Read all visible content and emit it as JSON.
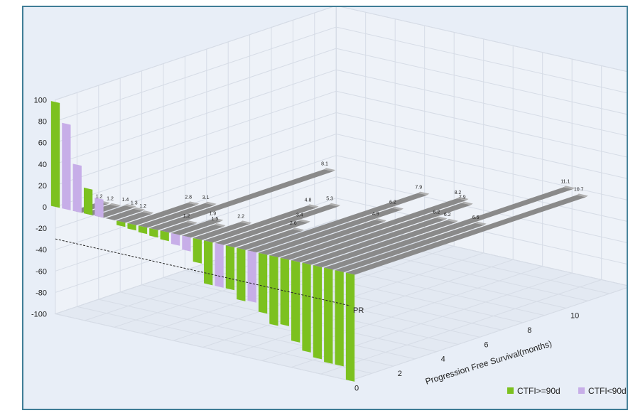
{
  "chart_data": {
    "type": "bar",
    "view": "3d",
    "colors": {
      "ctfi_ge_90d": "#7cc11f",
      "ctfi_lt_90d": "#c7aee8",
      "pfs": "#8a8a8a",
      "frame": "#3f7d96",
      "background": "#e8eef7"
    },
    "zlim": [
      -100,
      100
    ],
    "z_ticks": [
      "100",
      "80",
      "60",
      "40",
      "20",
      "0",
      "-20",
      "-40",
      "-60",
      "-80",
      "-100"
    ],
    "pfs_ticks": [
      "0",
      "2",
      "4",
      "6",
      "8",
      "10"
    ],
    "pfs_axis_label": "Progression Free Survival(months)",
    "threshold": {
      "value": -30,
      "label": "PR"
    },
    "legend": [
      {
        "name": "CTFI>=90d",
        "color": "#7cc11f"
      },
      {
        "name": "CTFI<90d",
        "color": "#c7aee8"
      }
    ],
    "patients": [
      {
        "response": 98,
        "group": "CTFI>=90d",
        "pfs": null,
        "pfs_label": ""
      },
      {
        "response": 80,
        "group": "CTFI<90d",
        "pfs": null,
        "pfs_label": ""
      },
      {
        "response": 44,
        "group": "CTFI<90d",
        "pfs": 1.2,
        "pfs_label": "1.2"
      },
      {
        "response": 24,
        "group": "CTFI>=90d",
        "pfs": 1.2,
        "pfs_label": "1.2"
      },
      {
        "response": 17,
        "group": "CTFI<90d",
        "pfs": 1.4,
        "pfs_label": "1.4"
      },
      {
        "response": 0,
        "group": "CTFI>=90d",
        "pfs": 1.3,
        "pfs_label": "1.3"
      },
      {
        "response": -4,
        "group": "CTFI>=90d",
        "pfs": 1.2,
        "pfs_label": "1.2"
      },
      {
        "response": -5,
        "group": "CTFI>=90d",
        "pfs": 2.8,
        "pfs_label": "2.8"
      },
      {
        "response": -6,
        "group": "CTFI>=90d",
        "pfs": 3.1,
        "pfs_label": "3.1"
      },
      {
        "response": -7,
        "group": "CTFI>=90d",
        "pfs": 8.1,
        "pfs_label": "8.1"
      },
      {
        "response": -8,
        "group": "CTFI>=90d",
        "pfs": 1.2,
        "pfs_label": "1.2"
      },
      {
        "response": -10,
        "group": "CTFI<90d",
        "pfs": 1.9,
        "pfs_label": "1.9"
      },
      {
        "response": -13,
        "group": "CTFI<90d",
        "pfs": 1.5,
        "pfs_label": "1.5"
      },
      {
        "response": -22,
        "group": "CTFI>=90d",
        "pfs": 2.2,
        "pfs_label": "2.2"
      },
      {
        "response": -40,
        "group": "CTFI>=90d",
        "pfs": 4.8,
        "pfs_label": "4.8"
      },
      {
        "response": -40,
        "group": "CTFI<90d",
        "pfs": 5.3,
        "pfs_label": "5.3"
      },
      {
        "response": -40,
        "group": "CTFI>=90d",
        "pfs": 3.4,
        "pfs_label": "3.4"
      },
      {
        "response": -48,
        "group": "CTFI>=90d",
        "pfs": 2.6,
        "pfs_label": "2.6"
      },
      {
        "response": -47,
        "group": "CTFI<90d",
        "pfs": 7.9,
        "pfs_label": "7.9"
      },
      {
        "response": -55,
        "group": "CTFI>=90d",
        "pfs": 6.2,
        "pfs_label": "6.2"
      },
      {
        "response": -64,
        "group": "CTFI>=90d",
        "pfs": 4.9,
        "pfs_label": "4.9"
      },
      {
        "response": -62,
        "group": "CTFI>=90d",
        "pfs": 8.2,
        "pfs_label": "8.2"
      },
      {
        "response": -75,
        "group": "CTFI>=90d",
        "pfs": 7.9,
        "pfs_label": "7.9"
      },
      {
        "response": -82,
        "group": "CTFI>=90d",
        "pfs": 6.2,
        "pfs_label": "6.2"
      },
      {
        "response": -86,
        "group": "CTFI>=90d",
        "pfs": 6.2,
        "pfs_label": "6.2"
      },
      {
        "response": -88,
        "group": "CTFI>=90d",
        "pfs": 11.1,
        "pfs_label": "11.1"
      },
      {
        "response": -88,
        "group": "CTFI>=90d",
        "pfs": 6.5,
        "pfs_label": "6.5"
      },
      {
        "response": -100,
        "group": "CTFI>=90d",
        "pfs": 10.7,
        "pfs_label": "10.7"
      }
    ]
  }
}
